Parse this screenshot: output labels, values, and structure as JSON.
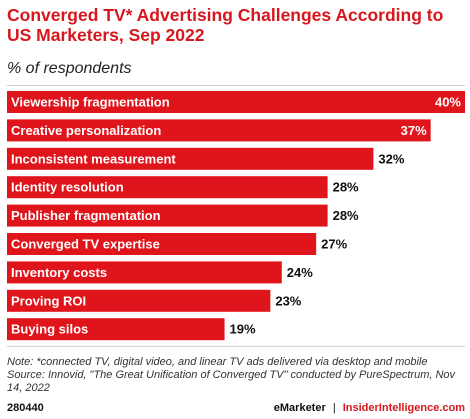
{
  "header": {
    "title": "Converged TV* Advertising Challenges According to US Marketers, Sep 2022",
    "subtitle": "% of respondents"
  },
  "chart_data": {
    "type": "bar",
    "orientation": "horizontal",
    "categories": [
      "Viewership fragmentation",
      "Creative personalization",
      "Inconsistent measurement",
      "Identity resolution",
      "Publisher fragmentation",
      "Converged TV expertise",
      "Inventory costs",
      "Proving ROI",
      "Buying silos"
    ],
    "values": [
      40,
      37,
      32,
      28,
      28,
      27,
      24,
      23,
      19
    ],
    "value_labels": [
      "40%",
      "37%",
      "32%",
      "28%",
      "28%",
      "27%",
      "24%",
      "23%",
      "19%"
    ],
    "unit": "%",
    "xlim": [
      0,
      40
    ],
    "grid": false,
    "legend": "none",
    "bar_color": "#e0141b"
  },
  "footer": {
    "note": "Note: *connected TV, digital video, and linear TV ads delivered via desktop and mobile Source: Innovid, \"The Great Unification of Converged TV\" conducted by PureSpectrum, Nov 14, 2022",
    "chart_id": "280440",
    "brand_left": "eMarketer",
    "separator": "|",
    "brand_right": "InsiderIntelligence.com"
  },
  "colors": {
    "accent": "#d7171d",
    "bar": "#e0141b",
    "value_inside": "#ffffff",
    "value_outside": "#111111"
  }
}
